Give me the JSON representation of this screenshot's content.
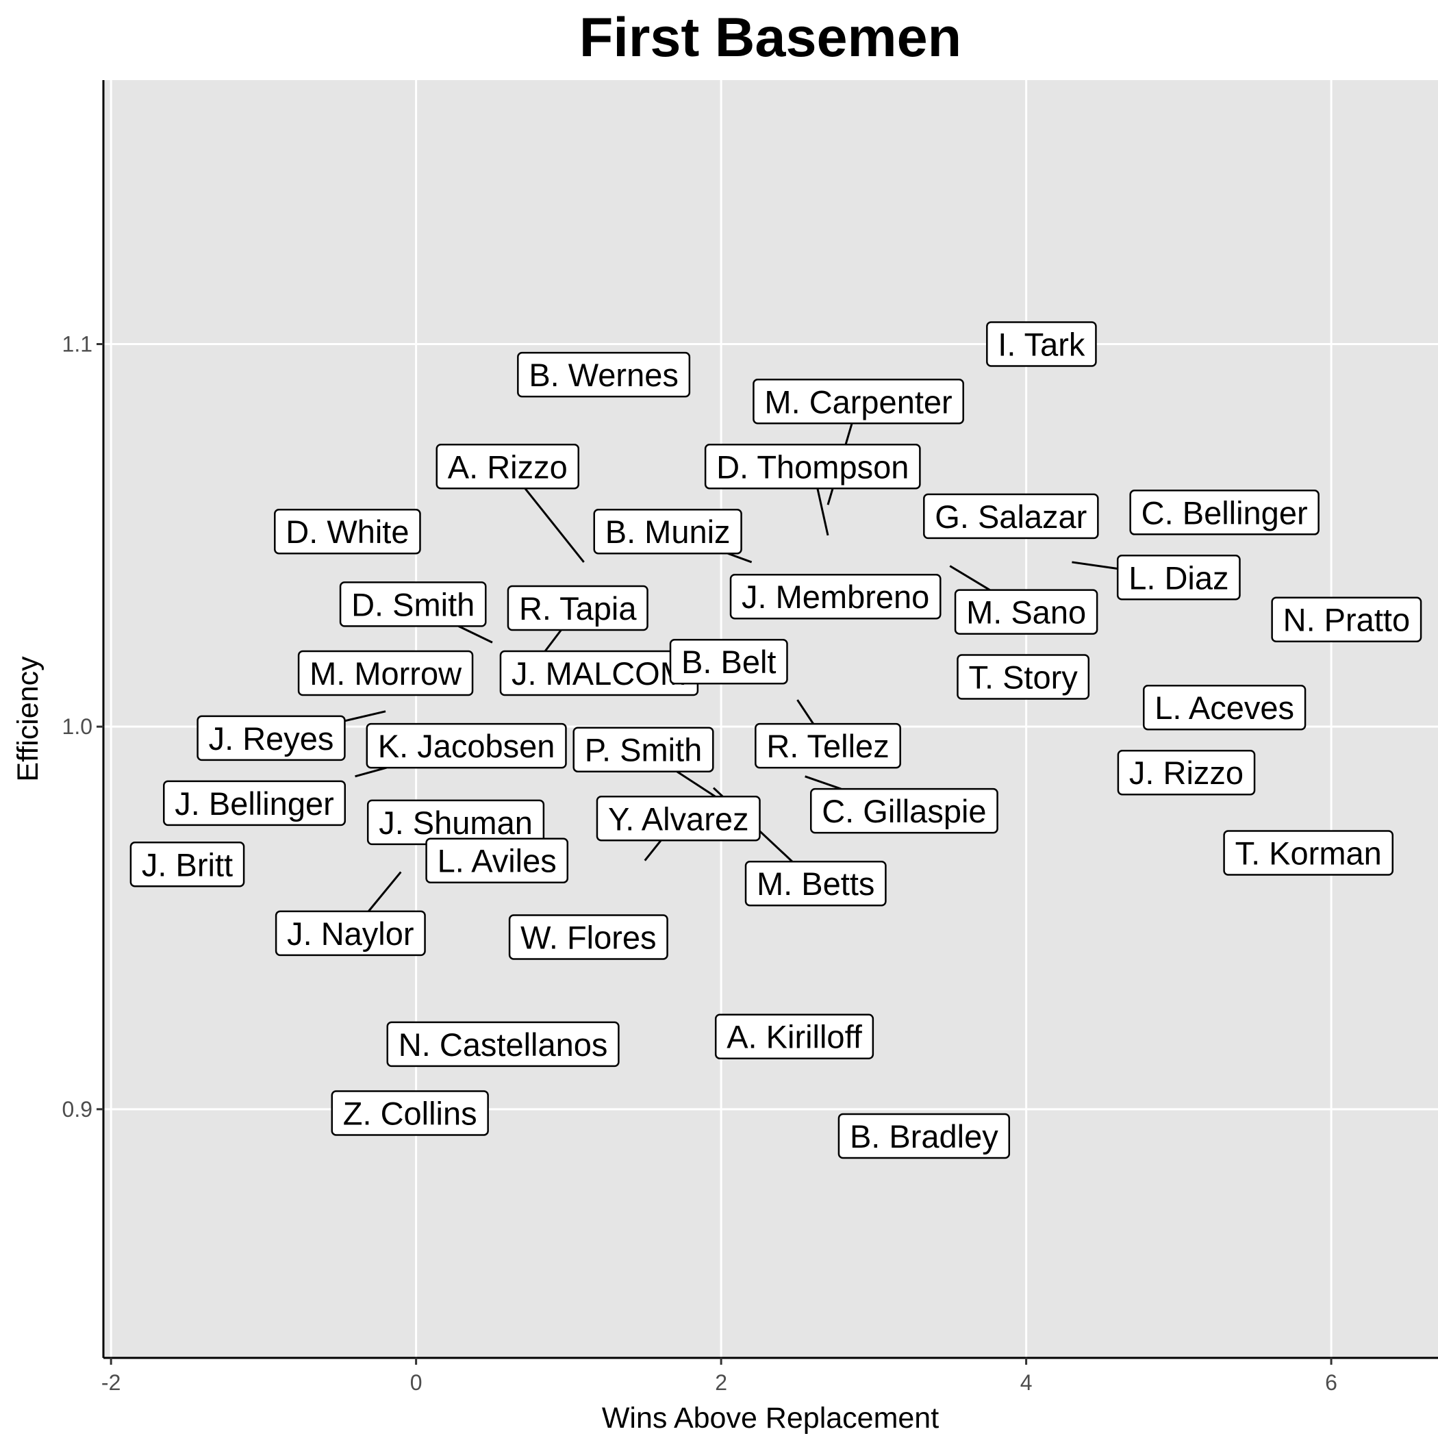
{
  "chart_data": {
    "type": "scatter",
    "title": "First Basemen",
    "xlabel": "Wins Above Replacement",
    "ylabel": "Efficiency",
    "xlim": [
      -2.05,
      6.7
    ],
    "ylim": [
      0.835,
      1.169
    ],
    "x_ticks": [
      -2,
      0,
      2,
      4,
      6
    ],
    "y_ticks": [
      0.9,
      1.0,
      1.1
    ],
    "grid": true,
    "legend": "none",
    "colors": {
      "panel": "#e5e5e5",
      "grid": "#ffffff",
      "label_fill": "#ffffff",
      "label_border": "#000000"
    },
    "points": [
      {
        "name": "I. Tark",
        "x": 4.1,
        "y": 1.1,
        "lx": 4.1,
        "ly": 1.1
      },
      {
        "name": "B. Wernes",
        "x": 1.23,
        "y": 1.092,
        "lx": 1.23,
        "ly": 1.092
      },
      {
        "name": "M. Carpenter",
        "x": 2.7,
        "y": 1.058,
        "lx": 2.9,
        "ly": 1.085
      },
      {
        "name": "A. Rizzo",
        "x": 1.1,
        "y": 1.043,
        "lx": 0.6,
        "ly": 1.068
      },
      {
        "name": "D. Thompson",
        "x": 2.7,
        "y": 1.05,
        "lx": 2.6,
        "ly": 1.068
      },
      {
        "name": "D. White",
        "x": -0.45,
        "y": 1.051,
        "lx": -0.45,
        "ly": 1.051
      },
      {
        "name": "G. Salazar",
        "x": 3.9,
        "y": 1.055,
        "lx": 3.9,
        "ly": 1.055
      },
      {
        "name": "C. Bellinger",
        "x": 5.3,
        "y": 1.056,
        "lx": 5.3,
        "ly": 1.056
      },
      {
        "name": "B. Muniz",
        "x": 2.2,
        "y": 1.043,
        "lx": 1.65,
        "ly": 1.051
      },
      {
        "name": "L. Diaz",
        "x": 4.3,
        "y": 1.043,
        "lx": 5.0,
        "ly": 1.039
      },
      {
        "name": "J. Membreno",
        "x": 2.75,
        "y": 1.034,
        "lx": 2.75,
        "ly": 1.034
      },
      {
        "name": "D. Smith",
        "x": 0.5,
        "y": 1.022,
        "lx": -0.02,
        "ly": 1.032
      },
      {
        "name": "R. Tapia",
        "x": 0.68,
        "y": 1.011,
        "lx": 1.06,
        "ly": 1.031
      },
      {
        "name": "M. Sano",
        "x": 3.5,
        "y": 1.042,
        "lx": 4.0,
        "ly": 1.03
      },
      {
        "name": "N. Pratto",
        "x": 6.1,
        "y": 1.028,
        "lx": 6.1,
        "ly": 1.028
      },
      {
        "name": "M. Morrow",
        "x": -0.2,
        "y": 1.014,
        "lx": -0.2,
        "ly": 1.014
      },
      {
        "name": "J. MALCOM",
        "x": 1.2,
        "y": 1.014,
        "lx": 1.2,
        "ly": 1.014
      },
      {
        "name": "B. Belt",
        "x": 2.05,
        "y": 1.017,
        "lx": 2.05,
        "ly": 1.017
      },
      {
        "name": "T. Story",
        "x": 3.98,
        "y": 1.013,
        "lx": 3.98,
        "ly": 1.013
      },
      {
        "name": "L. Aceves",
        "x": 5.3,
        "y": 1.005,
        "lx": 5.3,
        "ly": 1.005
      },
      {
        "name": "J. Reyes",
        "x": -0.2,
        "y": 1.004,
        "lx": -0.95,
        "ly": 0.997
      },
      {
        "name": "K. Jacobsen",
        "x": -0.4,
        "y": 0.987,
        "lx": 0.33,
        "ly": 0.995
      },
      {
        "name": "R. Tellez",
        "x": 2.5,
        "y": 1.007,
        "lx": 2.7,
        "ly": 0.995
      },
      {
        "name": "P. Smith",
        "x": 1.99,
        "y": 0.981,
        "lx": 1.49,
        "ly": 0.994
      },
      {
        "name": "J. Rizzo",
        "x": 5.05,
        "y": 0.988,
        "lx": 5.05,
        "ly": 0.988
      },
      {
        "name": "J. Bellinger",
        "x": -1.06,
        "y": 0.98,
        "lx": -1.06,
        "ly": 0.98
      },
      {
        "name": "C. Gillaspie",
        "x": 2.55,
        "y": 0.987,
        "lx": 3.2,
        "ly": 0.978
      },
      {
        "name": "Y. Alvarez",
        "x": 1.5,
        "y": 0.965,
        "lx": 1.72,
        "ly": 0.976
      },
      {
        "name": "J. Shuman",
        "x": 0.26,
        "y": 0.975,
        "lx": 0.26,
        "ly": 0.975
      },
      {
        "name": "J. Britt",
        "x": -1.5,
        "y": 0.964,
        "lx": -1.5,
        "ly": 0.964
      },
      {
        "name": "L. Aviles",
        "x": 0.53,
        "y": 0.965,
        "lx": 0.53,
        "ly": 0.965
      },
      {
        "name": "T. Korman",
        "x": 5.85,
        "y": 0.967,
        "lx": 5.85,
        "ly": 0.967
      },
      {
        "name": "M. Betts",
        "x": 1.95,
        "y": 0.984,
        "lx": 2.62,
        "ly": 0.959
      },
      {
        "name": "J. Naylor",
        "x": -0.1,
        "y": 0.962,
        "lx": -0.43,
        "ly": 0.946
      },
      {
        "name": "W. Flores",
        "x": 1.13,
        "y": 0.945,
        "lx": 1.13,
        "ly": 0.945
      },
      {
        "name": "A. Kirilloff",
        "x": 2.48,
        "y": 0.919,
        "lx": 2.48,
        "ly": 0.919
      },
      {
        "name": "N. Castellanos",
        "x": 0.57,
        "y": 0.917,
        "lx": 0.57,
        "ly": 0.917
      },
      {
        "name": "Z. Collins",
        "x": -0.04,
        "y": 0.899,
        "lx": -0.04,
        "ly": 0.899
      },
      {
        "name": "B. Bradley",
        "x": 3.33,
        "y": 0.893,
        "lx": 3.33,
        "ly": 0.893
      }
    ]
  }
}
